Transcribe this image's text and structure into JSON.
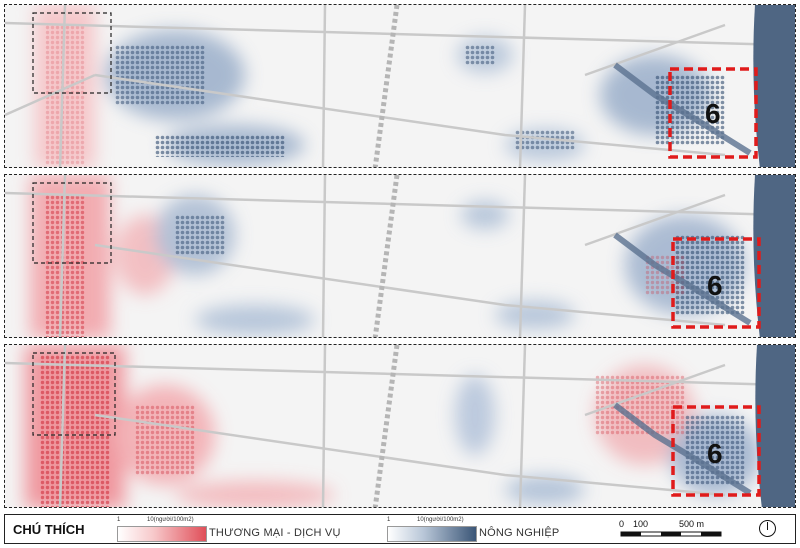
{
  "maps": {
    "panel_1": {
      "zone_label": "6"
    },
    "panel_2": {
      "zone_label": "6"
    },
    "panel_3": {
      "zone_label": "6"
    }
  },
  "legend": {
    "title": "CHÚ THÍCH",
    "commerce": {
      "min": "1",
      "max": "10(người/100m2)",
      "label": "THƯƠNG MẠI - DỊCH VỤ",
      "color": "#e04f59"
    },
    "agriculture": {
      "min": "1",
      "max": "10(người/100m2)",
      "label": "NÔNG NGHIỆP",
      "color": "#3b5677"
    },
    "scale": {
      "ticks": [
        "0",
        "100",
        "500 m"
      ]
    },
    "north_arrow": "compass-icon"
  }
}
